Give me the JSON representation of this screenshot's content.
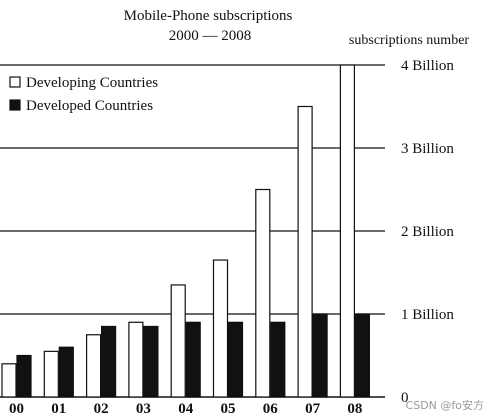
{
  "chart_data": {
    "type": "bar",
    "title": "Mobile-Phone subscriptions",
    "subtitle": "2000 — 2008",
    "ylabel": "subscriptions number",
    "xlabel": "",
    "categories": [
      "00",
      "01",
      "02",
      "03",
      "04",
      "05",
      "06",
      "07",
      "08"
    ],
    "series": [
      {
        "name": "Developing Countries",
        "color": "#ffffff",
        "values": [
          0.4,
          0.55,
          0.75,
          0.9,
          1.35,
          1.65,
          2.5,
          3.5,
          4.0
        ]
      },
      {
        "name": "Developed Countries",
        "color": "#111111",
        "values": [
          0.5,
          0.6,
          0.85,
          0.85,
          0.9,
          0.9,
          0.9,
          1.0,
          1.0
        ]
      }
    ],
    "y_ticks": [
      {
        "value": 0,
        "label": "0"
      },
      {
        "value": 1,
        "label": "1 Billion"
      },
      {
        "value": 2,
        "label": "2 Billion"
      },
      {
        "value": 3,
        "label": "3 Billion"
      },
      {
        "value": 4,
        "label": "4 Billion"
      }
    ],
    "ylim": [
      0,
      4
    ],
    "grid": true,
    "legend_position": "top-left"
  },
  "watermark": "CSDN @fo安方"
}
